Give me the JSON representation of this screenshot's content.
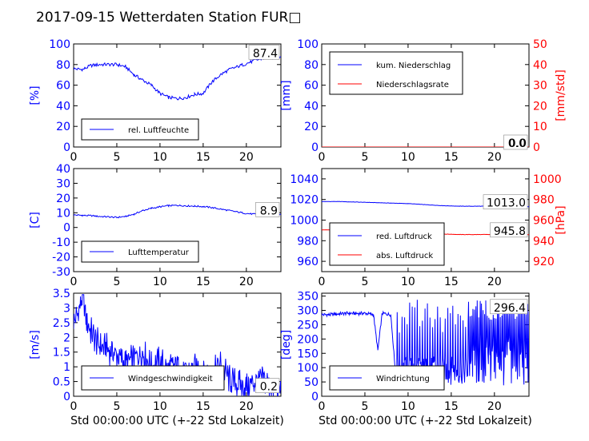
{
  "figure": {
    "title": "2017-09-15 Wetterdaten Station FUR□"
  },
  "colors": {
    "left_axis": "#0000ff",
    "right_axis": "#ff0000",
    "text": "#000000"
  },
  "chart_data": [
    {
      "id": "humidity",
      "type": "line",
      "title": "",
      "xlabel": "",
      "ylabel": "[%]",
      "xlim": [
        0,
        24
      ],
      "ylim": [
        0,
        100
      ],
      "xticks": [
        0,
        5,
        10,
        15,
        20
      ],
      "yticks": [
        0,
        20,
        40,
        60,
        80,
        100
      ],
      "value_label": "87.4",
      "legend": {
        "placement": "lower-left",
        "entries": [
          "rel. Luftfeuchte"
        ]
      },
      "series": [
        {
          "name": "rel. Luftfeuchte",
          "color": "#0000ff",
          "axis": "left",
          "x": [
            0,
            1,
            2,
            3,
            4,
            5,
            6,
            7,
            8,
            9,
            10,
            11,
            12,
            13,
            14,
            15,
            16,
            17,
            18,
            19,
            20,
            21,
            22,
            23,
            24
          ],
          "y": [
            76,
            75,
            79,
            80,
            80,
            80,
            78,
            70,
            65,
            60,
            52,
            48,
            47,
            48,
            51,
            52,
            63,
            70,
            75,
            78,
            81,
            84,
            86,
            87,
            87.4
          ]
        }
      ]
    },
    {
      "id": "precip",
      "type": "line",
      "title": "",
      "xlabel": "",
      "ylabel": "[mm]",
      "ylabel_right": "[mm/std]",
      "xlim": [
        0,
        24
      ],
      "ylim": [
        0,
        100
      ],
      "ylim_right": [
        0,
        50
      ],
      "xticks": [
        0,
        5,
        10,
        15,
        20
      ],
      "yticks": [
        0,
        20,
        40,
        60,
        80,
        100
      ],
      "yticks_right": [
        0,
        10,
        20,
        30,
        40,
        50
      ],
      "value_labels": [
        "0.0",
        "0.0"
      ],
      "legend": {
        "placement": "upper-left",
        "entries": [
          "kum. Niederschlag",
          "Niederschlagsrate"
        ]
      },
      "series": [
        {
          "name": "kum. Niederschlag",
          "color": "#0000ff",
          "axis": "left",
          "x": [
            0,
            24
          ],
          "y": [
            0,
            0
          ]
        },
        {
          "name": "Niederschlagsrate",
          "color": "#ff0000",
          "axis": "right",
          "x": [
            0,
            24
          ],
          "y": [
            0,
            0
          ]
        }
      ]
    },
    {
      "id": "temperature",
      "type": "line",
      "title": "",
      "xlabel": "",
      "ylabel": "[C]",
      "xlim": [
        0,
        24
      ],
      "ylim": [
        -30,
        40
      ],
      "xticks": [
        0,
        5,
        10,
        15,
        20
      ],
      "yticks": [
        -30,
        -20,
        -10,
        0,
        10,
        20,
        30,
        40
      ],
      "value_label": "8.9",
      "legend": {
        "placement": "lower-left",
        "entries": [
          "Lufttemperatur"
        ]
      },
      "series": [
        {
          "name": "Lufttemperatur",
          "color": "#0000ff",
          "axis": "left",
          "x": [
            0,
            1,
            2,
            3,
            4,
            5,
            6,
            7,
            8,
            9,
            10,
            11,
            12,
            13,
            14,
            15,
            16,
            17,
            18,
            19,
            20,
            21,
            22,
            23,
            24
          ],
          "y": [
            8.5,
            8.2,
            8.0,
            7.5,
            7.2,
            6.8,
            7.5,
            9.0,
            11.5,
            13.0,
            14.0,
            14.8,
            15.0,
            14.7,
            14.5,
            14.2,
            13.5,
            12.5,
            11.5,
            10.5,
            9.5,
            9.0,
            9.0,
            8.9,
            8.9
          ]
        }
      ]
    },
    {
      "id": "pressure",
      "type": "line",
      "title": "",
      "xlabel": "",
      "ylabel": "",
      "ylabel_right": "[hPa]",
      "xlim": [
        0,
        24
      ],
      "ylim": [
        950,
        1050
      ],
      "ylim_right": [
        910,
        1010
      ],
      "xticks": [
        0,
        5,
        10,
        15,
        20
      ],
      "yticks": [
        960,
        980,
        1000,
        1020,
        1040
      ],
      "yticks_right": [
        920,
        940,
        960,
        980,
        1000
      ],
      "value_labels": [
        "1013.0",
        "945.8"
      ],
      "legend": {
        "placement": "lower-left",
        "entries": [
          "red. Luftdruck",
          "abs. Luftdruck"
        ]
      },
      "series": [
        {
          "name": "red. Luftdruck",
          "color": "#0000ff",
          "axis": "left",
          "x": [
            0,
            2,
            4,
            6,
            8,
            10,
            12,
            14,
            16,
            18,
            20,
            22,
            24
          ],
          "y": [
            1018,
            1018,
            1017.5,
            1017,
            1016.5,
            1016,
            1015,
            1014,
            1013.5,
            1013.5,
            1013.5,
            1013,
            1013
          ]
        },
        {
          "name": "abs. Luftdruck",
          "color": "#ff0000",
          "axis": "right",
          "x": [
            0,
            2,
            4,
            6,
            8,
            10,
            12,
            14,
            16,
            18,
            20,
            22,
            24
          ],
          "y": [
            950.5,
            950.5,
            950,
            949.5,
            949,
            948.5,
            947.5,
            946.5,
            946,
            946,
            946,
            945.8,
            945.8
          ]
        }
      ]
    },
    {
      "id": "wind_speed",
      "type": "line",
      "title": "",
      "xlabel": "Std 00:00:00 UTC (+-22 Std Lokalzeit)",
      "ylabel": "[m/s]",
      "xlim": [
        0,
        24
      ],
      "ylim": [
        0,
        3.5
      ],
      "xticks": [
        0,
        5,
        10,
        15,
        20
      ],
      "yticks": [
        0,
        0.5,
        1.0,
        1.5,
        2.0,
        2.5,
        3.0,
        3.5
      ],
      "value_label": "0.2",
      "legend": {
        "placement": "lower-left",
        "entries": [
          "Windgeschwindigkeit"
        ]
      },
      "series": [
        {
          "name": "Windgeschwindigkeit",
          "color": "#0000ff",
          "axis": "left",
          "x": [
            0,
            0.5,
            1,
            1.5,
            2,
            3,
            4,
            5,
            6,
            7,
            8,
            9,
            10,
            11,
            12,
            13,
            14,
            15,
            16,
            17,
            18,
            19,
            20,
            21,
            22,
            23,
            24
          ],
          "y": [
            2.5,
            2.8,
            3.4,
            2.6,
            2.2,
            1.7,
            1.6,
            1.4,
            1.1,
            1.3,
            1.5,
            1.0,
            1.2,
            0.9,
            1.1,
            0.8,
            1.0,
            0.9,
            0.7,
            1.1,
            0.6,
            0.4,
            0.3,
            0.5,
            0.6,
            0.3,
            0.2
          ]
        }
      ]
    },
    {
      "id": "wind_dir",
      "type": "line",
      "title": "",
      "xlabel": "Std 00:00:00 UTC (+-22 Std Lokalzeit)",
      "ylabel": "[deg]",
      "xlim": [
        0,
        24
      ],
      "ylim": [
        0,
        360
      ],
      "xticks": [
        0,
        5,
        10,
        15,
        20
      ],
      "yticks": [
        0,
        50,
        100,
        150,
        200,
        250,
        300,
        350
      ],
      "value_label": "296.4",
      "legend": {
        "placement": "lower-left",
        "entries": [
          "Windrichtung"
        ]
      },
      "series": [
        {
          "name": "Windrichtung",
          "color": "#0000ff",
          "axis": "left",
          "x": [
            0,
            1,
            2,
            3,
            4,
            5,
            6,
            6.5,
            7,
            8,
            8.5,
            9,
            10,
            11,
            12,
            13,
            14,
            15,
            16,
            17,
            17.5,
            18,
            18.5,
            19,
            19.5,
            20,
            20.5,
            21,
            22,
            23,
            24
          ],
          "y": [
            285,
            285,
            288,
            290,
            289,
            290,
            285,
            160,
            290,
            285,
            100,
            90,
            80,
            85,
            75,
            70,
            80,
            75,
            90,
            250,
            100,
            340,
            60,
            300,
            80,
            330,
            120,
            280,
            250,
            300,
            296.4
          ]
        }
      ]
    }
  ]
}
